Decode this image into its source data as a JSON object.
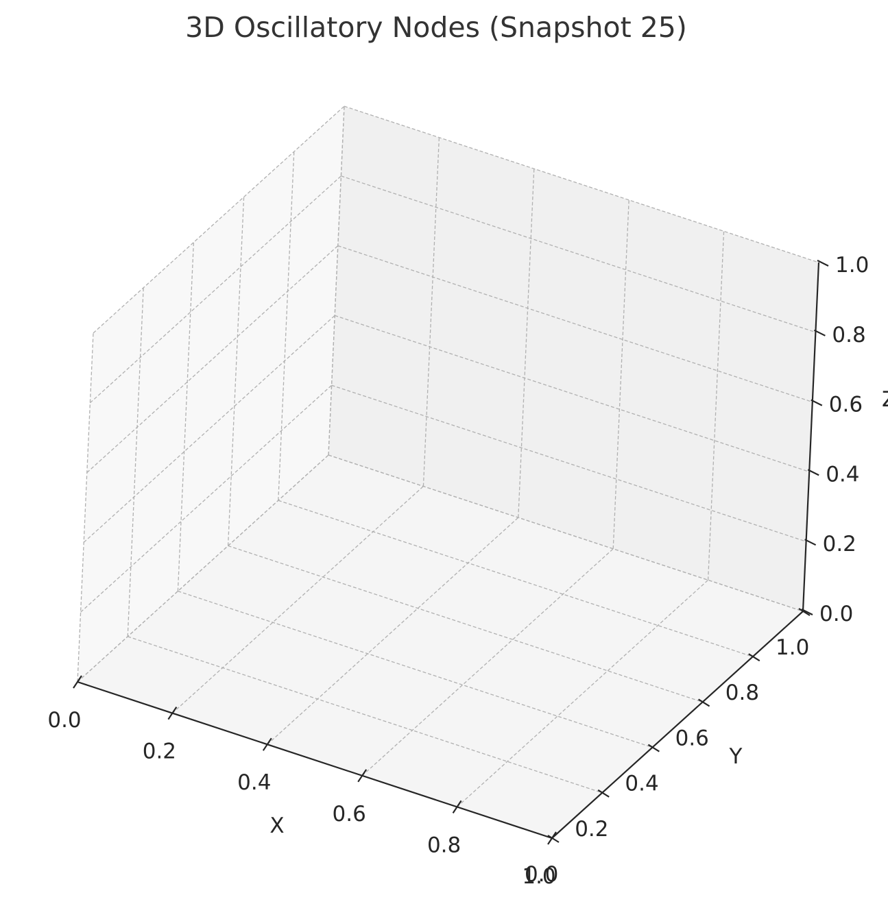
{
  "chart_data": {
    "type": "scatter",
    "title": "3D Oscillatory Nodes (Snapshot 25)",
    "xlabel": "X",
    "ylabel": "Y",
    "zlabel": "Z",
    "xlim": [
      0,
      1
    ],
    "ylim": [
      0,
      1
    ],
    "zlim": [
      0,
      1
    ],
    "x_ticks": [
      "0.0",
      "0.2",
      "0.4",
      "0.6",
      "0.8",
      "1.0"
    ],
    "y_ticks": [
      "0.0",
      "0.2",
      "0.4",
      "0.6",
      "0.8",
      "1.0"
    ],
    "z_ticks": [
      "0.0",
      "0.2",
      "0.4",
      "0.6",
      "0.8",
      "1.0"
    ],
    "grid": true,
    "series": [],
    "colors": {
      "floor_pane": "#f5f5f5",
      "left_pane": "#f8f8f8",
      "back_pane": "#f0f0f0",
      "grid": "#b0b0b0",
      "axis": "#262626",
      "title": "#333333"
    }
  }
}
